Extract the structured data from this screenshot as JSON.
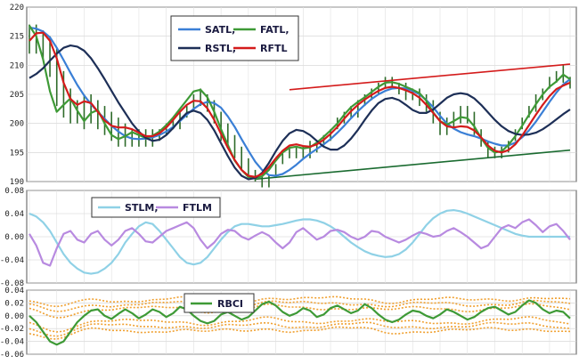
{
  "chart_data": [
    {
      "type": "line",
      "panel": "price",
      "ylim": [
        190,
        220
      ],
      "yticks": [
        "220",
        "215",
        "210",
        "205",
        "200",
        "195",
        "190"
      ],
      "grid": true,
      "legend": "top-center",
      "legend_entries": [
        "SATL,",
        "FATL,",
        "RSTL,",
        "RFTL"
      ],
      "n": 80,
      "x_start": 0,
      "price_bars": {
        "high": [
          217,
          217,
          216,
          215,
          213,
          209,
          206,
          204,
          205,
          205,
          204,
          203,
          202,
          201,
          200,
          199,
          199,
          199,
          199,
          199,
          200,
          201,
          202,
          203,
          205,
          206,
          205,
          204,
          202,
          200,
          198,
          196,
          194,
          192,
          191,
          191,
          193,
          195,
          196,
          196,
          196,
          197,
          197,
          198,
          199,
          201,
          202,
          203,
          204,
          205,
          206,
          207,
          208,
          208,
          207,
          207,
          206,
          206,
          205,
          204,
          202,
          201,
          202,
          203,
          203,
          202,
          199,
          197,
          196,
          196,
          197,
          199,
          201,
          203,
          205,
          206,
          208,
          209,
          210,
          208
        ],
        "low": [
          212,
          212,
          211,
          208,
          203,
          201,
          200,
          200,
          199,
          200,
          199,
          198,
          197,
          196,
          196,
          196,
          196,
          196,
          196,
          197,
          198,
          199,
          199,
          201,
          202,
          203,
          202,
          200,
          197,
          196,
          194,
          192,
          191,
          190,
          189,
          189,
          191,
          193,
          194,
          194,
          194,
          194,
          195,
          196,
          197,
          199,
          200,
          201,
          201,
          203,
          204,
          205,
          206,
          206,
          205,
          204,
          204,
          203,
          202,
          200,
          198,
          198,
          199,
          200,
          200,
          198,
          196,
          194,
          194,
          194,
          195,
          197,
          199,
          201,
          202,
          204,
          206,
          207,
          207,
          206
        ]
      },
      "series": [
        {
          "name": "SATL",
          "color": "#3a7fd6",
          "values": [
            216.5,
            216.3,
            215.8,
            214.8,
            213.0,
            210.9,
            208.7,
            206.6,
            204.8,
            203.3,
            202.0,
            200.8,
            199.6,
            198.6,
            197.8,
            197.4,
            197.3,
            197.4,
            197.6,
            198.0,
            198.6,
            199.4,
            200.4,
            201.5,
            202.5,
            203.3,
            203.7,
            203.5,
            202.7,
            201.2,
            199.4,
            197.3,
            195.3,
            193.4,
            192.0,
            191.1,
            191.0,
            191.3,
            192.0,
            192.9,
            193.9,
            194.8,
            195.6,
            196.4,
            197.3,
            198.4,
            199.6,
            200.9,
            202.1,
            203.2,
            204.2,
            205.0,
            205.6,
            206.0,
            206.1,
            206.0,
            205.6,
            205.0,
            204.0,
            202.8,
            201.3,
            200.0,
            199.1,
            198.5,
            198.1,
            197.8,
            197.4,
            196.9,
            196.5,
            196.2,
            196.2,
            196.7,
            197.6,
            198.8,
            200.3,
            202.0,
            203.7,
            205.3,
            206.7,
            207.6
          ]
        },
        {
          "name": "FATL",
          "color": "#3e9a36",
          "values": [
            216.8,
            215.0,
            211.0,
            205.5,
            202.0,
            203.2,
            204.3,
            202.2,
            200.4,
            201.8,
            202.3,
            200.0,
            198.0,
            197.3,
            197.8,
            198.5,
            198.0,
            197.5,
            197.9,
            198.6,
            199.7,
            201.0,
            202.5,
            204.0,
            205.5,
            205.8,
            204.5,
            202.0,
            199.0,
            196.3,
            193.6,
            192.0,
            190.8,
            190.5,
            190.9,
            192.0,
            193.6,
            195.0,
            195.8,
            196.0,
            195.7,
            195.9,
            196.7,
            197.7,
            198.8,
            200.0,
            201.5,
            202.8,
            203.7,
            204.5,
            205.4,
            206.3,
            207.0,
            207.1,
            206.8,
            206.3,
            205.8,
            205.2,
            203.9,
            201.9,
            200.4,
            199.8,
            200.4,
            201.1,
            200.9,
            199.5,
            197.5,
            195.8,
            195.0,
            195.2,
            196.3,
            197.8,
            199.6,
            201.5,
            203.3,
            205.0,
            206.3,
            207.2,
            208.4,
            207.6
          ]
        },
        {
          "name": "RSTL",
          "color": "#1d2f57",
          "values": [
            207.8,
            208.5,
            209.5,
            210.8,
            212.0,
            213.0,
            213.4,
            213.2,
            212.5,
            211.2,
            209.5,
            207.6,
            205.6,
            203.6,
            201.8,
            200.0,
            198.6,
            197.5,
            197.0,
            197.2,
            198.0,
            199.2,
            200.6,
            201.8,
            202.2,
            201.8,
            200.6,
            198.8,
            196.6,
            194.4,
            192.4,
            191.0,
            190.4,
            190.6,
            191.5,
            193.2,
            195.2,
            197.0,
            198.3,
            198.9,
            198.7,
            198.0,
            197.0,
            196.0,
            195.5,
            195.5,
            196.2,
            197.4,
            198.9,
            200.6,
            202.2,
            203.5,
            204.2,
            204.4,
            204.0,
            203.2,
            202.3,
            201.8,
            201.8,
            202.4,
            203.4,
            204.4,
            205.0,
            205.2,
            205.0,
            204.3,
            203.2,
            201.9,
            200.6,
            199.5,
            198.7,
            198.2,
            198.0,
            198.1,
            198.4,
            199.0,
            199.8,
            200.7,
            201.6,
            202.4
          ]
        },
        {
          "name": "RFTL",
          "color": "#d41b1b",
          "values": [
            214.2,
            215.5,
            215.6,
            214.2,
            211.2,
            207.0,
            204.2,
            203.2,
            203.8,
            203.5,
            202.0,
            200.5,
            199.6,
            199.3,
            199.3,
            199.0,
            198.4,
            197.8,
            197.8,
            198.3,
            199.3,
            200.6,
            202.0,
            203.2,
            203.9,
            203.8,
            202.6,
            200.6,
            198.2,
            195.8,
            193.7,
            192.0,
            191.0,
            190.8,
            191.3,
            192.5,
            194.0,
            195.3,
            196.2,
            196.4,
            196.1,
            196.0,
            196.4,
            197.2,
            198.2,
            199.4,
            200.8,
            202.1,
            203.2,
            204.1,
            204.9,
            205.6,
            206.1,
            206.3,
            206.1,
            205.7,
            205.2,
            204.4,
            203.2,
            201.8,
            200.4,
            199.5,
            199.3,
            199.5,
            199.4,
            198.8,
            197.6,
            196.2,
            195.3,
            195.0,
            195.4,
            196.4,
            197.9,
            199.7,
            201.5,
            203.2,
            204.7,
            205.9,
            206.5,
            207.0
          ]
        }
      ],
      "trendlines": [
        {
          "color": "#d41b1b",
          "from": [
            38,
            205.8
          ],
          "to": [
            79,
            210.2
          ]
        },
        {
          "color": "#1a6b30",
          "from": [
            33,
            190.4
          ],
          "to": [
            79,
            195.4
          ]
        }
      ]
    },
    {
      "type": "line",
      "panel": "stlm_ftlm",
      "ylim": [
        -0.08,
        0.08
      ],
      "yticks": [
        "0.08",
        "0.04",
        "0.00",
        "-0.04",
        "-0.08"
      ],
      "grid": true,
      "legend": "top-left",
      "legend_entries": [
        "STLM,",
        "FTLM"
      ],
      "n": 80,
      "series": [
        {
          "name": "STLM",
          "color": "#8fd1e6",
          "values": [
            0.04,
            0.035,
            0.025,
            0.01,
            -0.01,
            -0.03,
            -0.045,
            -0.055,
            -0.062,
            -0.064,
            -0.062,
            -0.055,
            -0.045,
            -0.03,
            -0.01,
            0.005,
            0.018,
            0.025,
            0.022,
            0.01,
            -0.005,
            -0.02,
            -0.035,
            -0.045,
            -0.048,
            -0.045,
            -0.035,
            -0.02,
            -0.005,
            0.008,
            0.018,
            0.022,
            0.022,
            0.02,
            0.018,
            0.018,
            0.02,
            0.022,
            0.025,
            0.028,
            0.03,
            0.03,
            0.028,
            0.024,
            0.018,
            0.01,
            0.0,
            -0.01,
            -0.018,
            -0.025,
            -0.03,
            -0.033,
            -0.035,
            -0.034,
            -0.03,
            -0.022,
            -0.01,
            0.005,
            0.02,
            0.032,
            0.04,
            0.045,
            0.046,
            0.044,
            0.04,
            0.035,
            0.03,
            0.025,
            0.02,
            0.015,
            0.01,
            0.005,
            0.002,
            0.0,
            0.0,
            0.0,
            0.0,
            0.0,
            0.0,
            0.0
          ]
        },
        {
          "name": "FTLM",
          "color": "#b88ae0",
          "values": [
            0.005,
            -0.015,
            -0.045,
            -0.05,
            -0.02,
            0.005,
            0.01,
            -0.005,
            -0.01,
            0.005,
            0.01,
            -0.005,
            -0.015,
            -0.005,
            0.01,
            0.015,
            0.005,
            -0.008,
            -0.01,
            0.0,
            0.01,
            0.015,
            0.02,
            0.025,
            0.015,
            -0.005,
            -0.02,
            -0.01,
            0.005,
            0.012,
            0.01,
            0.0,
            -0.005,
            0.002,
            0.008,
            0.002,
            -0.01,
            -0.02,
            -0.01,
            0.008,
            0.015,
            0.005,
            -0.005,
            0.0,
            0.01,
            0.012,
            0.008,
            0.0,
            -0.005,
            0.0,
            0.01,
            0.008,
            0.0,
            -0.005,
            -0.01,
            -0.005,
            0.002,
            0.008,
            0.005,
            0.0,
            0.002,
            0.01,
            0.015,
            0.008,
            0.0,
            -0.01,
            -0.02,
            -0.015,
            0.0,
            0.015,
            0.02,
            0.015,
            0.025,
            0.03,
            0.02,
            0.008,
            0.018,
            0.022,
            0.01,
            -0.005
          ]
        }
      ]
    },
    {
      "type": "line",
      "panel": "rbci",
      "ylim": [
        -0.06,
        0.04
      ],
      "yticks": [
        "0.04",
        "0.02",
        "0.00",
        "-0.02",
        "-0.04",
        "-0.06"
      ],
      "grid": true,
      "legend": "top-center",
      "legend_entries": [
        "RBCI"
      ],
      "n": 80,
      "series": [
        {
          "name": "RBCI",
          "color": "#3e9a36",
          "values": [
            0.0,
            -0.01,
            -0.025,
            -0.04,
            -0.045,
            -0.04,
            -0.025,
            -0.01,
            0.0,
            0.008,
            0.01,
            0.0,
            -0.005,
            0.003,
            0.01,
            0.004,
            -0.004,
            0.002,
            0.01,
            0.006,
            -0.002,
            0.004,
            0.014,
            0.01,
            0.0,
            -0.008,
            -0.012,
            -0.008,
            0.002,
            0.006,
            0.0,
            -0.006,
            -0.002,
            0.008,
            0.018,
            0.022,
            0.016,
            0.006,
            0.0,
            0.004,
            0.012,
            0.008,
            -0.002,
            0.002,
            0.012,
            0.016,
            0.01,
            0.004,
            0.008,
            0.018,
            0.012,
            0.002,
            -0.006,
            -0.01,
            -0.006,
            0.002,
            0.008,
            0.006,
            0.0,
            -0.004,
            0.002,
            0.01,
            0.006,
            0.0,
            -0.006,
            -0.002,
            0.006,
            0.012,
            0.014,
            0.008,
            0.002,
            0.006,
            0.016,
            0.024,
            0.02,
            0.01,
            0.004,
            0.008,
            0.006,
            -0.004
          ]
        }
      ],
      "bands": {
        "color": "#f0a030",
        "offsets": [
          0.024,
          0.017,
          0.01,
          -0.01,
          -0.017,
          -0.024
        ]
      }
    }
  ]
}
